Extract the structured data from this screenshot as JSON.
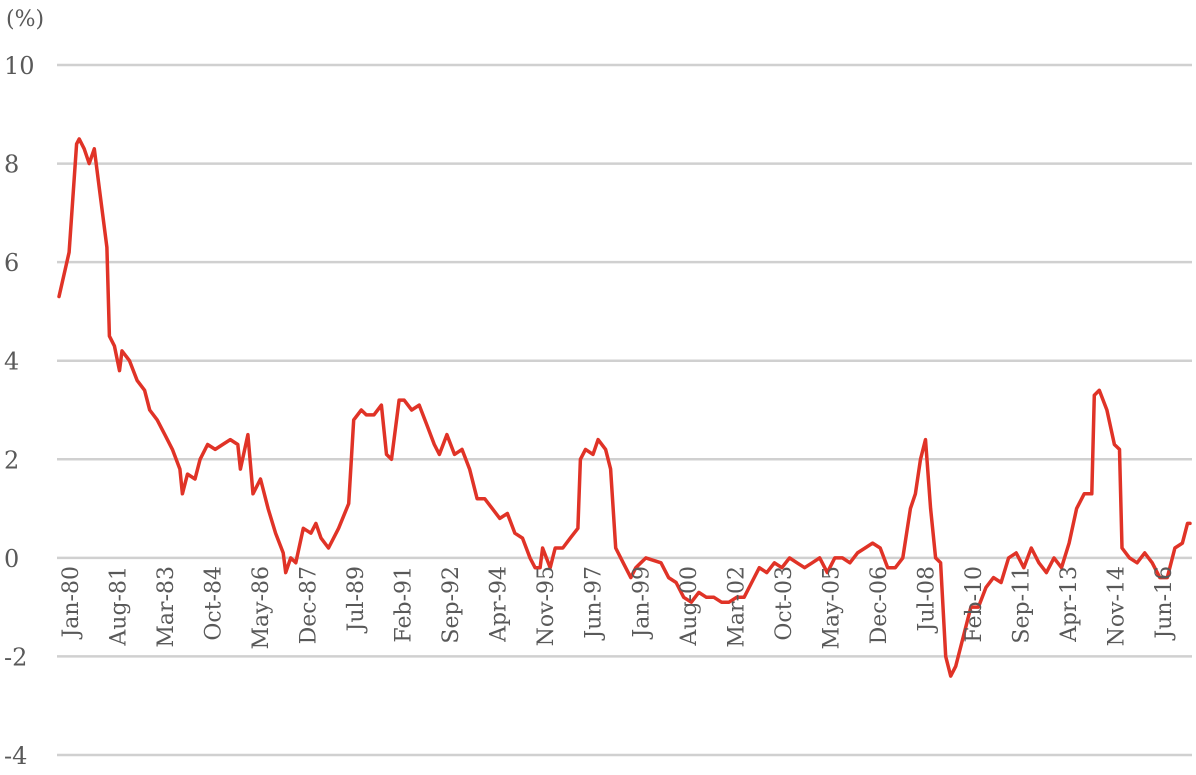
{
  "chart_data": {
    "type": "line",
    "title": "",
    "xlabel": "",
    "ylabel": "",
    "unit_label": "(%)",
    "ylim": [
      -4,
      10
    ],
    "yticks": [
      -4,
      -2,
      0,
      2,
      4,
      6,
      8,
      10
    ],
    "y_tick_labels": [
      "-4",
      "-2",
      "0",
      "2",
      "4",
      "6",
      "8",
      "10"
    ],
    "grid": true,
    "legend": "none",
    "x_tick_labels": [
      "Jan-80",
      "Aug-81",
      "Mar-83",
      "Oct-84",
      "May-86",
      "Dec-87",
      "Jul-89",
      "Feb-91",
      "Sep-92",
      "Apr-94",
      "Nov-95",
      "Jun-97",
      "Jan-99",
      "Aug-00",
      "Mar-02",
      "Oct-03",
      "May-05",
      "Dec-06",
      "Jul-08",
      "Feb-10",
      "Sep-11",
      "Apr-13",
      "Nov-14",
      "Jun-16"
    ],
    "x_range": [
      "1980-01",
      "2017-06"
    ],
    "color": "#e03327",
    "series": [
      {
        "values": [
          [
            "1980-01",
            5.3
          ],
          [
            "1980-05",
            6.2
          ],
          [
            "1980-08",
            8.4
          ],
          [
            "1980-09",
            8.5
          ],
          [
            "1980-11",
            8.3
          ],
          [
            "1981-01",
            8.0
          ],
          [
            "1981-03",
            8.3
          ],
          [
            "1981-05",
            7.5
          ],
          [
            "1981-08",
            6.3
          ],
          [
            "1981-09",
            4.5
          ],
          [
            "1981-11",
            4.3
          ],
          [
            "1982-01",
            3.8
          ],
          [
            "1982-02",
            4.2
          ],
          [
            "1982-05",
            4.0
          ],
          [
            "1982-08",
            3.6
          ],
          [
            "1982-11",
            3.4
          ],
          [
            "1983-01",
            3.0
          ],
          [
            "1983-04",
            2.8
          ],
          [
            "1983-07",
            2.5
          ],
          [
            "1983-10",
            2.2
          ],
          [
            "1984-01",
            1.8
          ],
          [
            "1984-02",
            1.3
          ],
          [
            "1984-04",
            1.7
          ],
          [
            "1984-07",
            1.6
          ],
          [
            "1984-09",
            2.0
          ],
          [
            "1984-12",
            2.3
          ],
          [
            "1985-03",
            2.2
          ],
          [
            "1985-06",
            2.3
          ],
          [
            "1985-09",
            2.4
          ],
          [
            "1985-12",
            2.3
          ],
          [
            "1986-01",
            1.8
          ],
          [
            "1986-04",
            2.5
          ],
          [
            "1986-06",
            1.3
          ],
          [
            "1986-09",
            1.6
          ],
          [
            "1986-12",
            1.0
          ],
          [
            "1987-03",
            0.5
          ],
          [
            "1987-06",
            0.1
          ],
          [
            "1987-07",
            -0.3
          ],
          [
            "1987-09",
            0.0
          ],
          [
            "1987-11",
            -0.1
          ],
          [
            "1988-02",
            0.6
          ],
          [
            "1988-05",
            0.5
          ],
          [
            "1988-07",
            0.7
          ],
          [
            "1988-09",
            0.4
          ],
          [
            "1988-12",
            0.2
          ],
          [
            "1989-04",
            0.6
          ],
          [
            "1989-08",
            1.1
          ],
          [
            "1989-10",
            2.8
          ],
          [
            "1990-01",
            3.0
          ],
          [
            "1990-03",
            2.9
          ],
          [
            "1990-06",
            2.9
          ],
          [
            "1990-09",
            3.1
          ],
          [
            "1990-11",
            2.1
          ],
          [
            "1991-01",
            2.0
          ],
          [
            "1991-04",
            3.2
          ],
          [
            "1991-06",
            3.2
          ],
          [
            "1991-09",
            3.0
          ],
          [
            "1991-12",
            3.1
          ],
          [
            "1992-03",
            2.7
          ],
          [
            "1992-06",
            2.3
          ],
          [
            "1992-08",
            2.1
          ],
          [
            "1992-11",
            2.5
          ],
          [
            "1993-02",
            2.1
          ],
          [
            "1993-05",
            2.2
          ],
          [
            "1993-08",
            1.8
          ],
          [
            "1993-11",
            1.2
          ],
          [
            "1994-02",
            1.2
          ],
          [
            "1994-05",
            1.0
          ],
          [
            "1994-08",
            0.8
          ],
          [
            "1994-11",
            0.9
          ],
          [
            "1995-02",
            0.5
          ],
          [
            "1995-05",
            0.4
          ],
          [
            "1995-08",
            0.0
          ],
          [
            "1995-10",
            -0.2
          ],
          [
            "1995-12",
            -0.2
          ],
          [
            "1996-01",
            0.2
          ],
          [
            "1996-04",
            -0.2
          ],
          [
            "1996-06",
            0.2
          ],
          [
            "1996-09",
            0.2
          ],
          [
            "1996-12",
            0.4
          ],
          [
            "1997-03",
            0.6
          ],
          [
            "1997-04",
            2.0
          ],
          [
            "1997-06",
            2.2
          ],
          [
            "1997-09",
            2.1
          ],
          [
            "1997-11",
            2.4
          ],
          [
            "1998-02",
            2.2
          ],
          [
            "1998-04",
            1.8
          ],
          [
            "1998-06",
            0.2
          ],
          [
            "1998-09",
            -0.1
          ],
          [
            "1998-12",
            -0.4
          ],
          [
            "1999-02",
            -0.2
          ],
          [
            "1999-06",
            0.0
          ],
          [
            "1999-12",
            -0.1
          ],
          [
            "2000-03",
            -0.4
          ],
          [
            "2000-06",
            -0.5
          ],
          [
            "2000-09",
            -0.8
          ],
          [
            "2000-12",
            -0.9
          ],
          [
            "2001-03",
            -0.7
          ],
          [
            "2001-06",
            -0.8
          ],
          [
            "2001-09",
            -0.8
          ],
          [
            "2001-12",
            -0.9
          ],
          [
            "2002-03",
            -0.9
          ],
          [
            "2002-06",
            -0.8
          ],
          [
            "2002-09",
            -0.8
          ],
          [
            "2002-12",
            -0.5
          ],
          [
            "2003-03",
            -0.2
          ],
          [
            "2003-06",
            -0.3
          ],
          [
            "2003-09",
            -0.1
          ],
          [
            "2003-12",
            -0.2
          ],
          [
            "2004-03",
            0.0
          ],
          [
            "2004-06",
            -0.1
          ],
          [
            "2004-09",
            -0.2
          ],
          [
            "2004-12",
            -0.1
          ],
          [
            "2005-03",
            0.0
          ],
          [
            "2005-06",
            -0.3
          ],
          [
            "2005-09",
            0.0
          ],
          [
            "2005-12",
            0.0
          ],
          [
            "2006-03",
            -0.1
          ],
          [
            "2006-06",
            0.1
          ],
          [
            "2006-09",
            0.2
          ],
          [
            "2006-12",
            0.3
          ],
          [
            "2007-03",
            0.2
          ],
          [
            "2007-06",
            -0.2
          ],
          [
            "2007-09",
            -0.2
          ],
          [
            "2007-12",
            0.0
          ],
          [
            "2008-03",
            1.0
          ],
          [
            "2008-05",
            1.3
          ],
          [
            "2008-07",
            2.0
          ],
          [
            "2008-09",
            2.4
          ],
          [
            "2008-11",
            1.0
          ],
          [
            "2009-01",
            0.0
          ],
          [
            "2009-03",
            -0.1
          ],
          [
            "2009-05",
            -2.0
          ],
          [
            "2009-07",
            -2.4
          ],
          [
            "2009-09",
            -2.2
          ],
          [
            "2009-12",
            -1.6
          ],
          [
            "2010-03",
            -1.0
          ],
          [
            "2010-06",
            -1.0
          ],
          [
            "2010-09",
            -0.6
          ],
          [
            "2010-12",
            -0.4
          ],
          [
            "2011-03",
            -0.5
          ],
          [
            "2011-06",
            0.0
          ],
          [
            "2011-09",
            0.1
          ],
          [
            "2011-12",
            -0.2
          ],
          [
            "2012-03",
            0.2
          ],
          [
            "2012-06",
            -0.1
          ],
          [
            "2012-09",
            -0.3
          ],
          [
            "2012-12",
            0.0
          ],
          [
            "2013-03",
            -0.2
          ],
          [
            "2013-06",
            0.3
          ],
          [
            "2013-09",
            1.0
          ],
          [
            "2013-12",
            1.3
          ],
          [
            "2014-03",
            1.3
          ],
          [
            "2014-04",
            3.3
          ],
          [
            "2014-06",
            3.4
          ],
          [
            "2014-09",
            3.0
          ],
          [
            "2014-12",
            2.3
          ],
          [
            "2015-02",
            2.2
          ],
          [
            "2015-03",
            0.2
          ],
          [
            "2015-06",
            0.0
          ],
          [
            "2015-09",
            -0.1
          ],
          [
            "2015-12",
            0.1
          ],
          [
            "2016-03",
            -0.1
          ],
          [
            "2016-06",
            -0.4
          ],
          [
            "2016-09",
            -0.4
          ],
          [
            "2016-12",
            0.2
          ],
          [
            "2017-03",
            0.3
          ],
          [
            "2017-05",
            0.7
          ],
          [
            "2017-06",
            0.7
          ]
        ]
      }
    ]
  }
}
